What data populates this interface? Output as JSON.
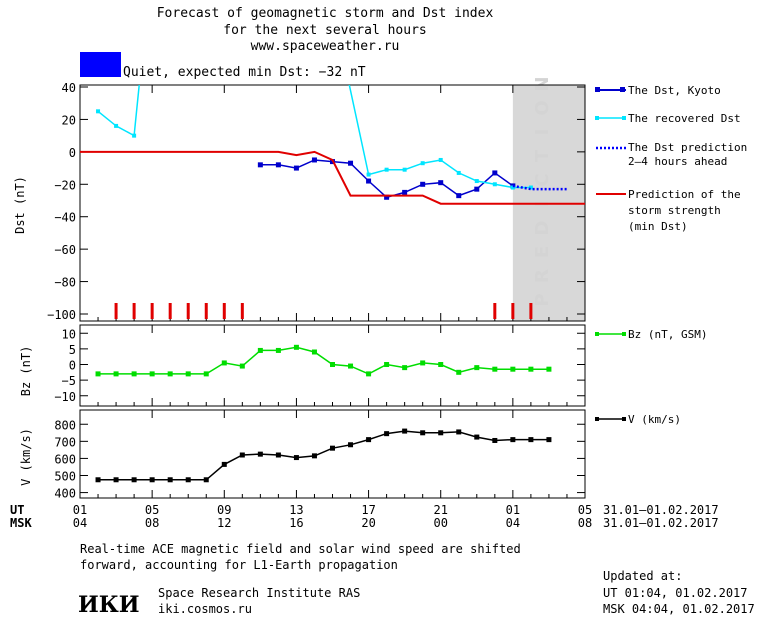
{
  "header": {
    "title_line1": "Forecast of geomagnetic storm and Dst index",
    "title_line2": "for the next several hours",
    "title_line3": "www.spaceweather.ru",
    "status_color": "#0000ff",
    "status_text": "Quiet, expected min Dst: −32 nT"
  },
  "chart_data": [
    {
      "type": "line",
      "panel": "dst",
      "ylabel": "Dst (nT)",
      "ylim": [
        -100,
        40
      ],
      "yticks": [
        "40",
        "20",
        "0",
        "−20",
        "−40",
        "−60",
        "−80",
        "−100"
      ],
      "ytick_values": [
        40,
        20,
        0,
        -20,
        -40,
        -60,
        -80,
        -100
      ],
      "prediction_label": "PREDICTION",
      "prediction_start_hour": 24,
      "series": [
        {
          "name": "The Dst, Kyoto",
          "color": "#0000cc",
          "x": [
            10,
            11,
            12,
            13,
            14,
            15,
            16,
            17,
            18,
            19,
            20,
            21,
            22,
            23,
            24
          ],
          "y": [
            -8,
            -8,
            -10,
            -5,
            -6,
            -7,
            -18,
            -28,
            -25,
            -20,
            -19,
            -27,
            -23,
            -13,
            -21
          ]
        },
        {
          "name": "The recovered Dst",
          "color": "#00e5ff",
          "x": [
            1,
            2,
            3,
            3.3,
            14.9,
            16,
            17,
            18,
            19,
            20,
            21,
            22,
            23,
            24,
            25
          ],
          "y": [
            25,
            16,
            10,
            43,
            43,
            -14,
            -11,
            -11,
            -7,
            -5,
            -13,
            -18,
            -20,
            -22,
            -22
          ],
          "clip_above": true
        },
        {
          "name": "The Dst prediction 2–4 hours ahead",
          "color": "#0000ff",
          "x": [
            24,
            25,
            26,
            27
          ],
          "y": [
            -21,
            -23,
            -23,
            -23
          ],
          "dotted": true
        },
        {
          "name": "Prediction of the storm strength (min Dst)",
          "color": "#e00000",
          "x": [
            0,
            9,
            10,
            11,
            12,
            13,
            14,
            15,
            16,
            17,
            18,
            19,
            20,
            21,
            22,
            23,
            24,
            25,
            26,
            28
          ],
          "y": [
            0,
            0,
            0,
            0,
            -2,
            0,
            -5,
            -27,
            -27,
            -27,
            -27,
            -27,
            -32,
            -32,
            -32,
            -32,
            -32,
            -32,
            -32,
            -32
          ],
          "step": true
        }
      ],
      "bottom_markers_hours": [
        2,
        3,
        4,
        5,
        6,
        7,
        8,
        9,
        23,
        24,
        25
      ]
    },
    {
      "type": "line",
      "panel": "bz",
      "ylabel": "Bz (nT)",
      "ylim": [
        -12,
        12
      ],
      "yticks": [
        "10",
        "5",
        "0",
        "−5",
        "−10"
      ],
      "ytick_values": [
        10,
        5,
        0,
        -5,
        -10
      ],
      "series": [
        {
          "name": "Bz (nT, GSM)",
          "color": "#00dd00",
          "x": [
            1,
            2,
            3,
            4,
            5,
            6,
            7,
            8,
            9,
            10,
            11,
            12,
            13,
            14,
            15,
            16,
            17,
            18,
            19,
            20,
            21,
            22,
            23,
            24,
            25,
            26
          ],
          "y": [
            -3,
            -3,
            -3,
            -3,
            -3,
            -3,
            -3,
            0.5,
            -0.5,
            4.5,
            4.5,
            5.5,
            4,
            0,
            -0.5,
            -3,
            0,
            -1,
            0.5,
            0,
            -2.5,
            -1,
            -1.5,
            -1.5,
            -1.5,
            -1.5
          ]
        }
      ]
    },
    {
      "type": "line",
      "panel": "v",
      "ylabel": "V (km/s)",
      "ylim": [
        380,
        860
      ],
      "yticks": [
        "800",
        "700",
        "600",
        "500",
        "400"
      ],
      "ytick_values": [
        800,
        700,
        600,
        500,
        400
      ],
      "series": [
        {
          "name": "V (km/s)",
          "color": "#000000",
          "x": [
            1,
            2,
            3,
            4,
            5,
            6,
            7,
            8,
            9,
            10,
            11,
            12,
            13,
            14,
            15,
            16,
            17,
            18,
            19,
            20,
            21,
            22,
            23,
            24,
            25,
            26
          ],
          "y": [
            475,
            475,
            475,
            475,
            475,
            475,
            475,
            565,
            620,
            625,
            620,
            605,
            615,
            660,
            680,
            710,
            745,
            760,
            750,
            750,
            755,
            725,
            705,
            710,
            710,
            710
          ]
        }
      ]
    }
  ],
  "xaxis": {
    "ut_label": "UT",
    "msk_label": "MSK",
    "ut_ticks": [
      "01",
      "05",
      "09",
      "13",
      "17",
      "21",
      "01",
      "05"
    ],
    "msk_ticks": [
      "04",
      "08",
      "12",
      "16",
      "20",
      "00",
      "04",
      "08"
    ],
    "tick_hours": [
      0,
      4,
      8,
      12,
      16,
      20,
      24,
      28
    ],
    "ut_range": "31.01–01.02.2017",
    "msk_range": "31.01–01.02.2017"
  },
  "footer": {
    "note_line1": "Real-time ACE magnetic field and solar wind speed are shifted",
    "note_line2": "forward, accounting for L1-Earth propagation",
    "logo_text": "ИКИ",
    "institute": "Space Research Institute RAS",
    "website": "iki.cosmos.ru",
    "updated_label": "Updated at:",
    "updated_ut": "UT  01:04, 01.02.2017",
    "updated_msk": "MSK 04:04, 01.02.2017"
  }
}
